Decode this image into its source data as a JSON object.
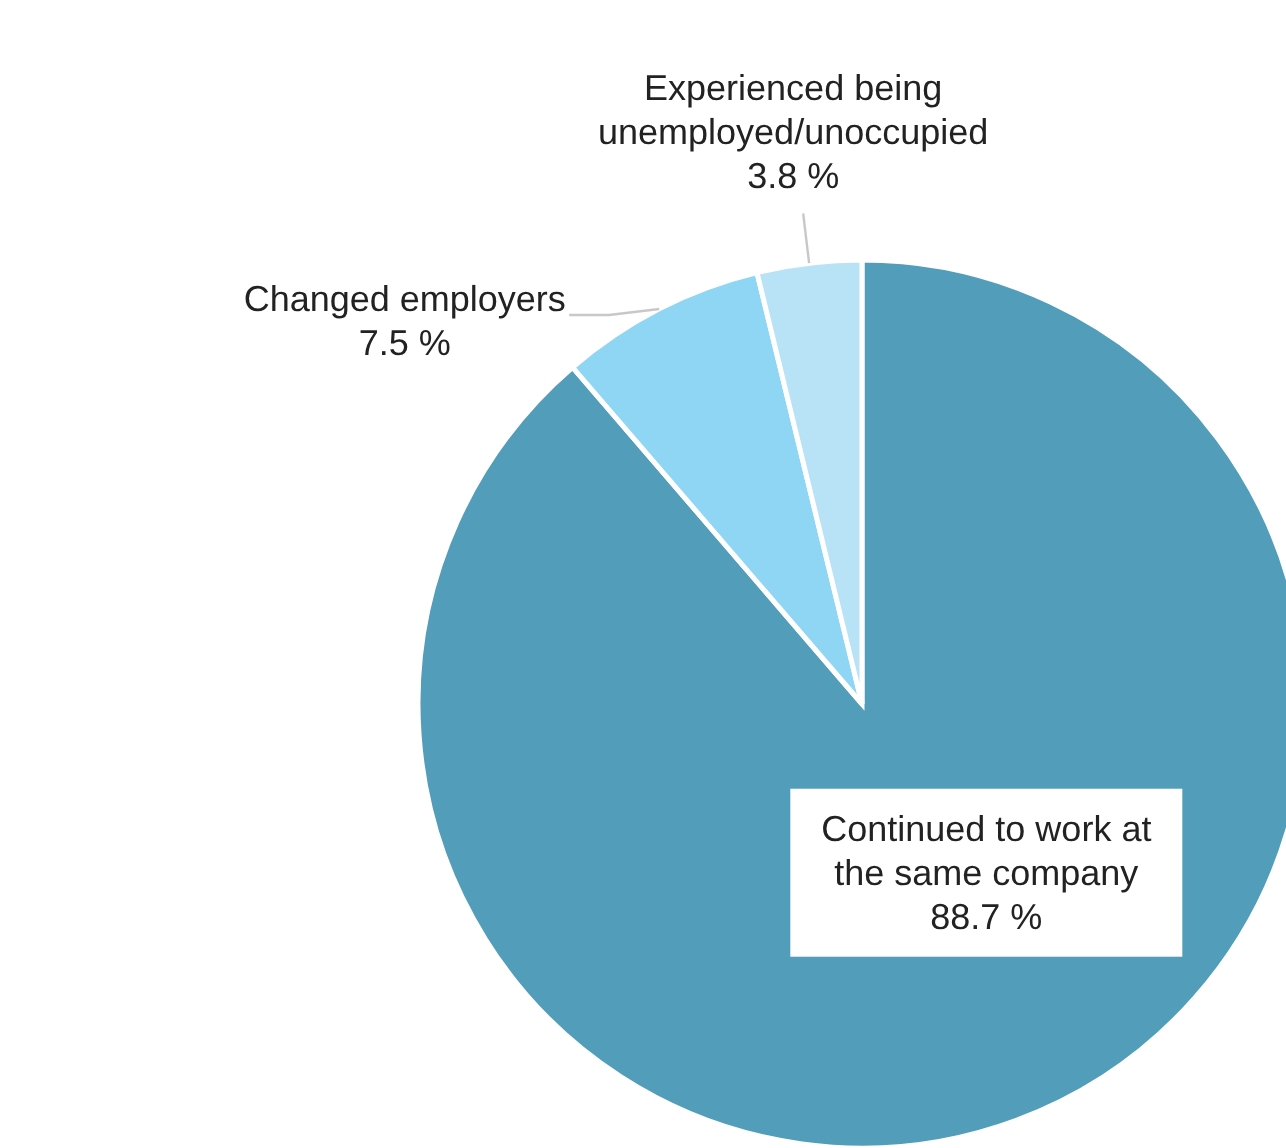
{
  "chart_data": {
    "type": "pie",
    "categories": [
      "Continued to work at the same company",
      "Changed employers",
      "Experienced being unemployed/unoccupied"
    ],
    "values": [
      88.7,
      7.5,
      3.8
    ],
    "value_labels": [
      "88.7 %",
      "7.5 %",
      "3.8 %"
    ],
    "colors": [
      "#519dba",
      "#8fd6f5",
      "#b8e3f7"
    ]
  }
}
